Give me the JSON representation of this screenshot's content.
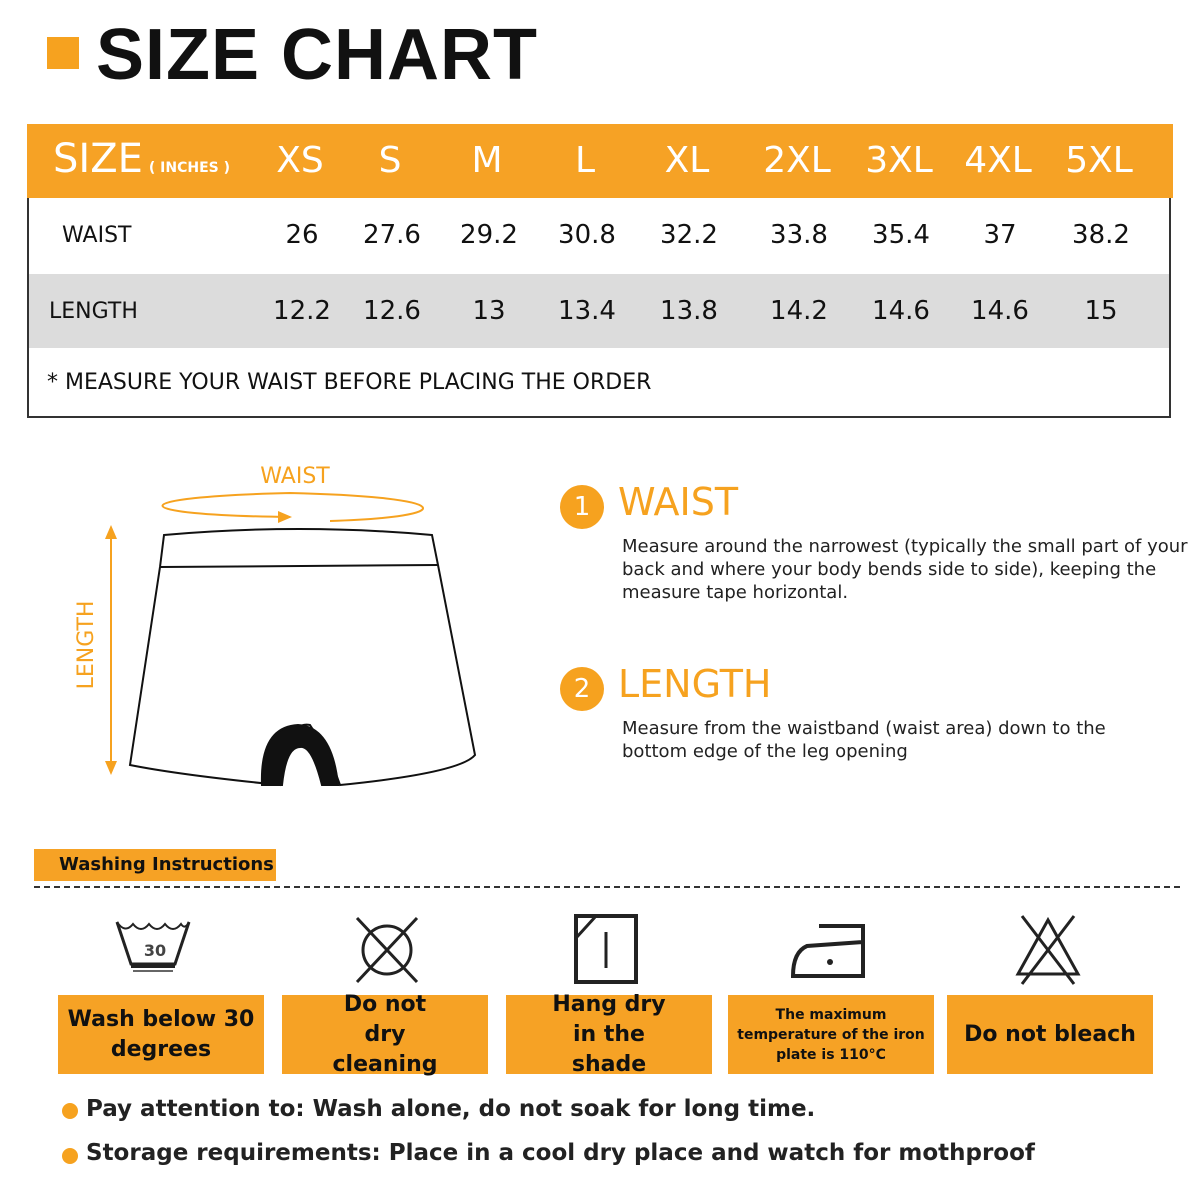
{
  "title": "SIZE CHART",
  "accent_color": "#f6a225",
  "table": {
    "size_label": "SIZE",
    "unit_label": "( INCHES )",
    "sizes": [
      "XS",
      "S",
      "M",
      "L",
      "XL",
      "2XL",
      "3XL",
      "4XL",
      "5XL"
    ],
    "rows": [
      {
        "label": "WAIST",
        "values": [
          "26",
          "27.6",
          "29.2",
          "30.8",
          "32.2",
          "33.8",
          "35.4",
          "37",
          "38.2"
        ]
      },
      {
        "label": "LENGTH",
        "values": [
          "12.2",
          "12.6",
          "13",
          "13.4",
          "13.8",
          "14.2",
          "14.6",
          "14.6",
          "15"
        ]
      }
    ],
    "note": "* MEASURE YOUR WAIST BEFORE PLACING THE ORDER"
  },
  "diagram": {
    "waist_label": "WAIST",
    "length_label": "LENGTH"
  },
  "measurements": [
    {
      "number": "1",
      "title": "WAIST",
      "description": "Measure around the narrowest (typically the small part of your back and where your body bends side to side), keeping the measure tape horizontal."
    },
    {
      "number": "2",
      "title": "LENGTH",
      "description": "Measure from the waistband (waist area) down to the bottom edge of the leg opening"
    }
  ],
  "washing": {
    "heading": "Washing Instructions",
    "items": [
      {
        "icon": "wash-30-icon",
        "label": "Wash below 30 degrees",
        "temp": "30"
      },
      {
        "icon": "no-dry-clean-icon",
        "label": "Do not dry cleaning"
      },
      {
        "icon": "hang-dry-shade-icon",
        "label": "Hang dry in the shade"
      },
      {
        "icon": "iron-low-icon",
        "label": "The maximum temperature of the iron plate is 110°C"
      },
      {
        "icon": "no-bleach-icon",
        "label": "Do not bleach"
      }
    ]
  },
  "notes": [
    "Pay attention to: Wash alone, do not soak for long time.",
    "Storage requirements: Place in a cool dry place and watch for mothproof"
  ]
}
